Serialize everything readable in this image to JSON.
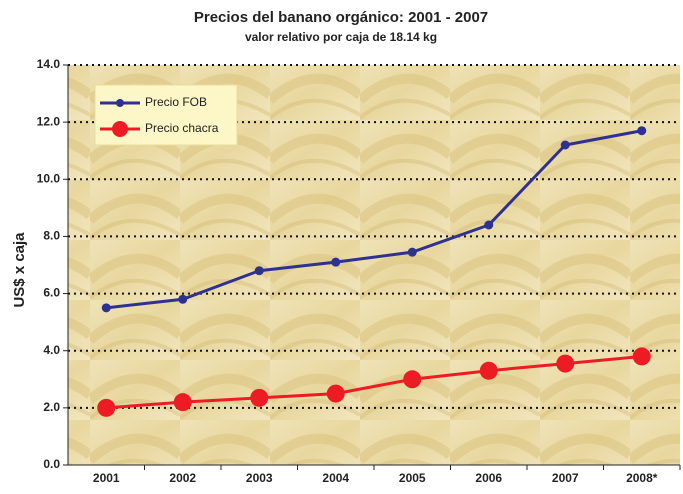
{
  "chart_data": {
    "type": "line",
    "title": "Precios del banano orgánico: 2001 - 2007",
    "subtitle": "valor relativo por caja de 18.14 kg",
    "y_label": "US$ x caja",
    "categories": [
      "2001",
      "2002",
      "2003",
      "2004",
      "2005",
      "2006",
      "2007",
      "2008*"
    ],
    "series": [
      {
        "name": "Precio FOB",
        "color": "#2e3192",
        "values": [
          5.5,
          5.8,
          6.8,
          7.1,
          7.45,
          8.4,
          11.2,
          11.7
        ]
      },
      {
        "name": "Precio chacra",
        "color": "#ed1c24",
        "values": [
          2.0,
          2.2,
          2.35,
          2.5,
          3.0,
          3.3,
          3.55,
          3.8
        ]
      }
    ],
    "ylim": [
      0,
      14
    ],
    "yticks": [
      {
        "value": 0,
        "label": "0.0"
      },
      {
        "value": 2,
        "label": "2.0"
      },
      {
        "value": 4,
        "label": "4.0"
      },
      {
        "value": 6,
        "label": "6.0"
      },
      {
        "value": 8,
        "label": "8.0"
      },
      {
        "value": 10,
        "label": "10.0"
      },
      {
        "value": 12,
        "label": "12.0"
      },
      {
        "value": 14,
        "label": "14.0"
      }
    ],
    "grid": true,
    "legend": "upper left"
  }
}
